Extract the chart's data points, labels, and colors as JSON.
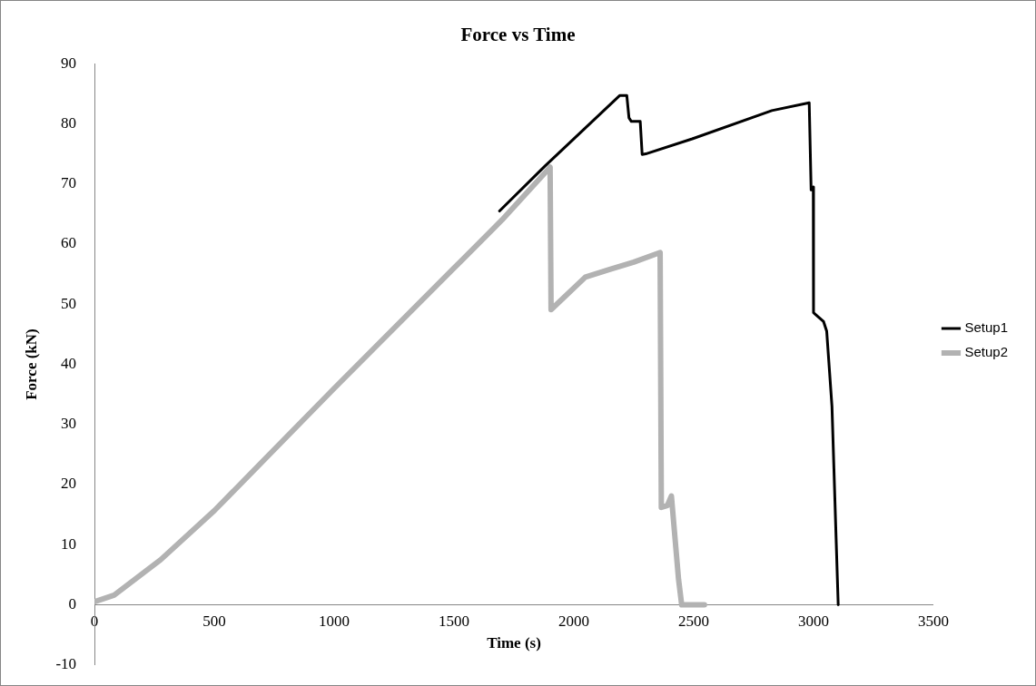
{
  "chart_data": {
    "type": "line",
    "title": "Force vs Time",
    "xlabel": "Time (s)",
    "ylabel": "Force (kN)",
    "xlim": [
      0,
      3500
    ],
    "xticks": [
      0,
      500,
      1000,
      1500,
      2000,
      2500,
      3000,
      3500
    ],
    "ylim": [
      -10,
      90
    ],
    "yticks": [
      -10,
      0,
      10,
      20,
      30,
      40,
      50,
      60,
      70,
      80,
      90
    ],
    "grid": false,
    "legend": "right",
    "marker": "none",
    "line_style": "solid",
    "series": [
      {
        "name": "Setup1",
        "color": "#000000",
        "x": [
          1690,
          1880,
          2191,
          2221,
          2230,
          2240,
          2277,
          2285,
          2300,
          2494,
          2826,
          2982,
          2990,
          2999,
          3000,
          3042,
          3055,
          3077,
          3094,
          3103
        ],
        "values": [
          65.5,
          73,
          84.7,
          84.7,
          81,
          80.4,
          80.4,
          74.9,
          75,
          77.5,
          82.2,
          83.5,
          69,
          69.5,
          48.6,
          47.1,
          45.5,
          33,
          11.3,
          0
        ]
      },
      {
        "name": "Setup2",
        "color": "#b2b2b2",
        "x": [
          0,
          82,
          276,
          501,
          1000,
          1500,
          1700,
          1901,
          1905,
          2048,
          2150,
          2250,
          2360,
          2365,
          2390,
          2407,
          2437,
          2450,
          2545
        ],
        "values": [
          0.5,
          1.6,
          7.5,
          15.7,
          36,
          56,
          64,
          72.8,
          49.1,
          54.5,
          55.8,
          57,
          58.6,
          16.2,
          16.5,
          18.1,
          4.2,
          0,
          0
        ]
      }
    ]
  }
}
